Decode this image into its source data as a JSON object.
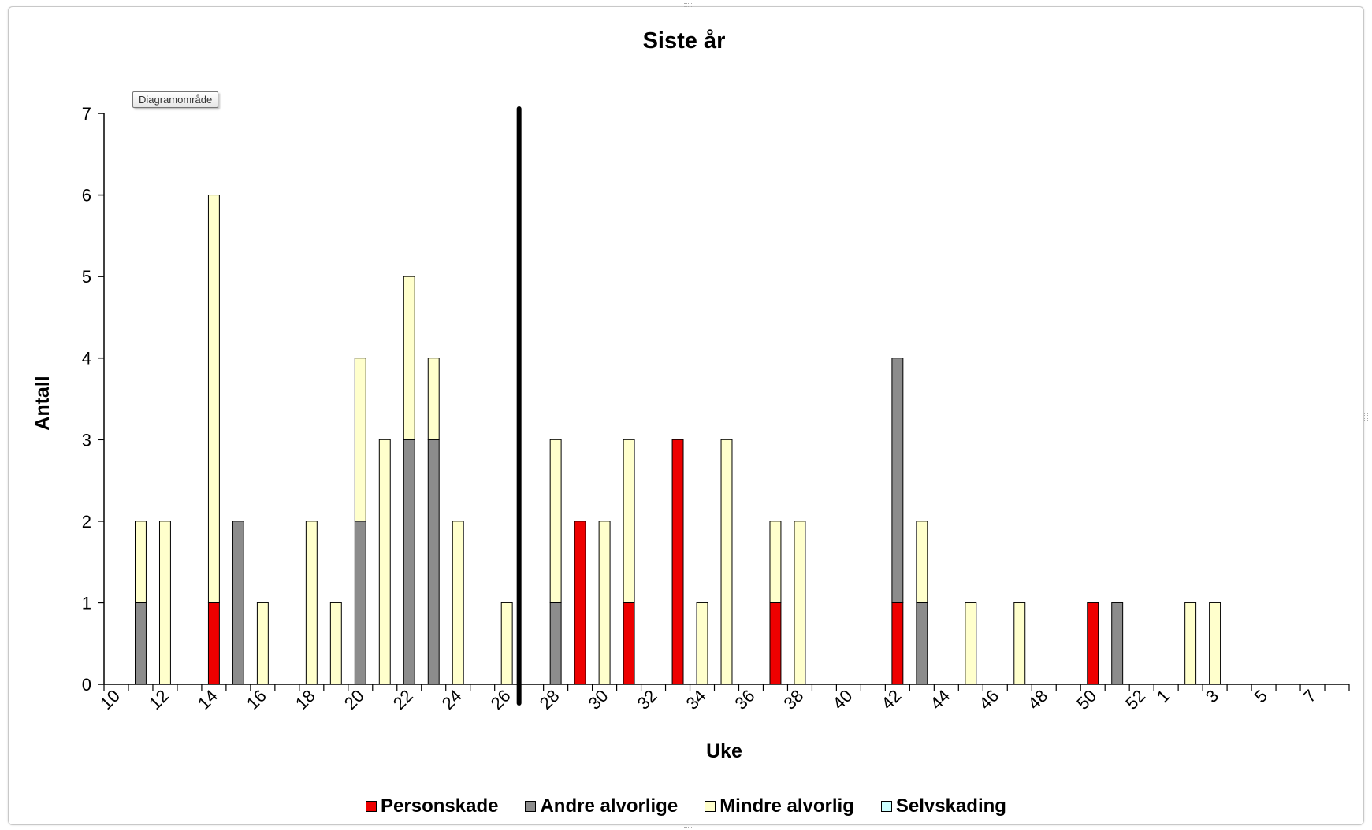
{
  "colors": {
    "personskade": "#ee0000",
    "andre": "#8c8c8c",
    "mindre": "#ffffcc",
    "selvskading": "#ccffff"
  },
  "tooltip": {
    "text": "Diagramområde"
  },
  "chart_data": {
    "type": "bar",
    "stacked": true,
    "title": "Siste år",
    "xlabel": "Uke",
    "ylabel": "Antall",
    "ylim": [
      0,
      7
    ],
    "yticks": [
      0,
      1,
      2,
      3,
      4,
      5,
      6,
      7
    ],
    "categories": [
      "10",
      "11",
      "12",
      "13",
      "14",
      "15",
      "16",
      "17",
      "18",
      "19",
      "20",
      "21",
      "22",
      "23",
      "24",
      "25",
      "26",
      "27",
      "28",
      "29",
      "30",
      "31",
      "32",
      "33",
      "34",
      "35",
      "36",
      "37",
      "38",
      "39",
      "40",
      "41",
      "42",
      "43",
      "44",
      "45",
      "46",
      "47",
      "48",
      "49",
      "50",
      "51",
      "52",
      "1",
      "2",
      "3",
      "4",
      "5",
      "6",
      "7",
      "8"
    ],
    "tick_labels": [
      "10",
      "12",
      "14",
      "16",
      "18",
      "20",
      "22",
      "24",
      "26",
      "28",
      "30",
      "32",
      "34",
      "36",
      "38",
      "40",
      "42",
      "44",
      "46",
      "48",
      "50",
      "52",
      "1",
      "3",
      "5",
      "7"
    ],
    "marker_line_after_category": "26",
    "legend_position": "bottom",
    "series": [
      {
        "name": "Personskade",
        "color_key": "personskade",
        "values": [
          0,
          0,
          0,
          0,
          1,
          0,
          0,
          0,
          0,
          0,
          0,
          0,
          0,
          0,
          0,
          0,
          0,
          0,
          0,
          2,
          0,
          1,
          0,
          3,
          0,
          0,
          0,
          1,
          0,
          0,
          0,
          0,
          1,
          0,
          0,
          0,
          0,
          0,
          0,
          0,
          1,
          0,
          0,
          0,
          0,
          0,
          0,
          0,
          0,
          0,
          0
        ]
      },
      {
        "name": "Andre alvorlige",
        "color_key": "andre",
        "values": [
          0,
          1,
          0,
          0,
          0,
          2,
          0,
          0,
          0,
          0,
          2,
          0,
          3,
          3,
          0,
          0,
          0,
          0,
          1,
          0,
          0,
          0,
          0,
          0,
          0,
          0,
          0,
          0,
          0,
          0,
          0,
          0,
          3,
          1,
          0,
          0,
          0,
          0,
          0,
          0,
          0,
          1,
          0,
          0,
          0,
          0,
          0,
          0,
          0,
          0,
          0
        ]
      },
      {
        "name": "Mindre alvorlig",
        "color_key": "mindre",
        "values": [
          0,
          1,
          2,
          0,
          5,
          0,
          1,
          0,
          2,
          1,
          2,
          3,
          2,
          1,
          2,
          0,
          1,
          0,
          2,
          0,
          2,
          2,
          0,
          0,
          1,
          3,
          0,
          1,
          2,
          0,
          0,
          0,
          0,
          1,
          0,
          1,
          0,
          1,
          0,
          0,
          0,
          0,
          0,
          0,
          1,
          1,
          0,
          0,
          0,
          0,
          0
        ]
      },
      {
        "name": "Selvskading",
        "color_key": "selvskading",
        "values": [
          0,
          0,
          0,
          0,
          0,
          0,
          0,
          0,
          0,
          0,
          0,
          0,
          0,
          0,
          0,
          0,
          0,
          0,
          0,
          0,
          0,
          0,
          0,
          0,
          0,
          0,
          0,
          0,
          0,
          0,
          0,
          0,
          0,
          0,
          0,
          0,
          0,
          0,
          0,
          0,
          0,
          0,
          0,
          0,
          0,
          0,
          0,
          0,
          0,
          0,
          0
        ]
      }
    ]
  }
}
